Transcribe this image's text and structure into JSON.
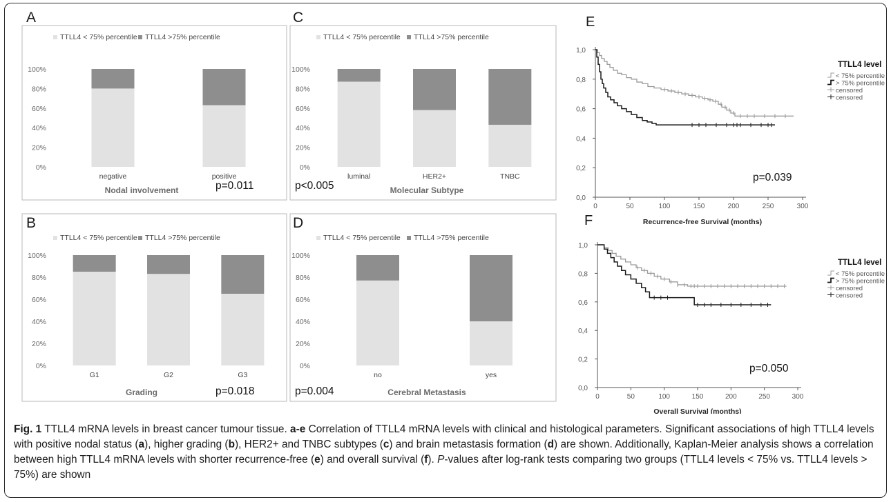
{
  "figure": {
    "caption_lead": "Fig. 1",
    "caption_html": " TTLL4 mRNA levels in breast cancer tumour tissue. <b>a-e</b> Correlation of TTLL4 mRNA levels with clinical and histological parameters. Significant associations of high TTLL4 levels with positive nodal status (<b>a</b>), higher grading (<b>b</b>), HER2+ and TNBC subtypes (<b>c</b>) and brain metastasis formation (<b>d</b>) are shown. Additionally, Kaplan-Meier analysis shows a correlation between high TTLL4 mRNA levels with shorter recurrence-free (<b>e</b>) and overall survival (<b>f</b>). <i>P</i>-values after log-rank tests comparing two groups (TTLL4 levels &lt; 75% vs. TTLL4 levels &gt; 75%) are shown"
  },
  "colors": {
    "low": "#e2e2e2",
    "high": "#8e8e8e",
    "km_low": "#9a9a9a",
    "km_high": "#1a1a1a",
    "axis_text": "#555555"
  },
  "chart_data": [
    {
      "panel": "A",
      "type": "bar",
      "stacked": true,
      "categories": [
        "negative",
        "positive"
      ],
      "series": [
        {
          "name": "TTLL4 < 75% percentile",
          "values": [
            80,
            63
          ]
        },
        {
          "name": "TTLL4 >75% percentile",
          "values": [
            20,
            37
          ]
        }
      ],
      "xlabel": "Nodal involvement",
      "ylim": [
        0,
        100
      ],
      "yticks": [
        "0%",
        "20%",
        "40%",
        "60%",
        "80%",
        "100%"
      ],
      "pvalue": "p=0.011",
      "legend": "top"
    },
    {
      "panel": "B",
      "type": "bar",
      "stacked": true,
      "categories": [
        "G1",
        "G2",
        "G3"
      ],
      "series": [
        {
          "name": "TTLL4 < 75% percentile",
          "values": [
            85,
            83,
            65
          ]
        },
        {
          "name": "TTLL4 >75% percentile",
          "values": [
            15,
            17,
            35
          ]
        }
      ],
      "xlabel": "Grading",
      "ylim": [
        0,
        100
      ],
      "yticks": [
        "0%",
        "20%",
        "40%",
        "60%",
        "80%",
        "100%"
      ],
      "pvalue": "p=0.018",
      "legend": "top"
    },
    {
      "panel": "C",
      "type": "bar",
      "stacked": true,
      "categories": [
        "luminal",
        "HER2+",
        "TNBC"
      ],
      "series": [
        {
          "name": "TTLL4 < 75% percentile",
          "values": [
            87,
            58,
            43
          ]
        },
        {
          "name": "TTLL4 >75% percentile",
          "values": [
            13,
            42,
            57
          ]
        }
      ],
      "xlabel": "Molecular Subtype",
      "ylim": [
        0,
        100
      ],
      "yticks": [
        "0%",
        "20%",
        "40%",
        "60%",
        "80%",
        "100%"
      ],
      "pvalue": "p<0.005",
      "legend": "top"
    },
    {
      "panel": "D",
      "type": "bar",
      "stacked": true,
      "categories": [
        "no",
        "yes"
      ],
      "series": [
        {
          "name": "TTLL4 < 75% percentile",
          "values": [
            77,
            40
          ]
        },
        {
          "name": "TTLL4 >75% percentile",
          "values": [
            23,
            60
          ]
        }
      ],
      "xlabel": "Cerebral Metastasis",
      "ylim": [
        0,
        100
      ],
      "yticks": [
        "0%",
        "20%",
        "40%",
        "60%",
        "80%",
        "100%"
      ],
      "pvalue": "p=0.004",
      "legend": "top"
    },
    {
      "panel": "E",
      "type": "line",
      "step": true,
      "xlabel": "Recurrence-free Survival (months)",
      "xlim": [
        0,
        300
      ],
      "ylim": [
        0,
        1
      ],
      "xticks": [
        0,
        50,
        100,
        150,
        200,
        250,
        300
      ],
      "yticks": [
        "0,0",
        "0,2",
        "0,4",
        "0,6",
        "0,8",
        "1,0"
      ],
      "legend_title": "TTLL4  level",
      "legend_items": [
        "< 75% percentile",
        "> 75% percentile",
        "censored",
        "censored"
      ],
      "pvalue": "p=0.039",
      "series": [
        {
          "name": "< 75% percentile",
          "x": [
            0,
            3,
            6,
            9,
            13,
            17,
            21,
            26,
            32,
            38,
            45,
            52,
            60,
            68,
            76,
            85,
            95,
            105,
            115,
            125,
            135,
            145,
            155,
            163,
            170,
            178,
            183,
            190,
            196,
            202,
            287
          ],
          "y": [
            1,
            0.98,
            0.96,
            0.94,
            0.92,
            0.9,
            0.88,
            0.86,
            0.84,
            0.83,
            0.81,
            0.8,
            0.78,
            0.77,
            0.75,
            0.74,
            0.73,
            0.72,
            0.71,
            0.7,
            0.69,
            0.68,
            0.67,
            0.66,
            0.65,
            0.63,
            0.61,
            0.59,
            0.57,
            0.55,
            0.55
          ],
          "censored_x": [
            100,
            110,
            120,
            130,
            140,
            150,
            158,
            166,
            174,
            182,
            188,
            194,
            200,
            210,
            220,
            230,
            245,
            260,
            275
          ]
        },
        {
          "name": "> 75% percentile",
          "x": [
            0,
            2,
            4,
            6,
            8,
            10,
            12,
            15,
            18,
            22,
            27,
            32,
            38,
            45,
            52,
            60,
            68,
            75,
            82,
            88,
            260
          ],
          "y": [
            1,
            0.95,
            0.9,
            0.85,
            0.8,
            0.77,
            0.74,
            0.71,
            0.68,
            0.66,
            0.64,
            0.62,
            0.6,
            0.58,
            0.56,
            0.54,
            0.52,
            0.51,
            0.5,
            0.49,
            0.49
          ],
          "censored_x": [
            140,
            150,
            160,
            175,
            190,
            200,
            205,
            210,
            225,
            240,
            250,
            255
          ]
        }
      ]
    },
    {
      "panel": "F",
      "type": "line",
      "step": true,
      "xlabel": "Overall Survival (months)",
      "xlim": [
        0,
        300
      ],
      "ylim": [
        0,
        1
      ],
      "xticks": [
        0,
        50,
        100,
        150,
        200,
        250,
        300
      ],
      "yticks": [
        "0,0",
        "0,2",
        "0,4",
        "0,6",
        "0,8",
        "1,0"
      ],
      "legend_title": "TTLL4 level",
      "legend_items": [
        "< 75% percentile",
        "> 75% percentile",
        "censored",
        "censored"
      ],
      "pvalue": "p=0.050",
      "series": [
        {
          "name": "< 75% percentile",
          "x": [
            0,
            10,
            16,
            22,
            28,
            35,
            42,
            50,
            58,
            66,
            75,
            85,
            95,
            108,
            120,
            135,
            283
          ],
          "y": [
            1,
            0.98,
            0.96,
            0.94,
            0.92,
            0.9,
            0.88,
            0.86,
            0.84,
            0.82,
            0.8,
            0.78,
            0.76,
            0.74,
            0.72,
            0.71,
            0.71
          ],
          "censored_x": [
            60,
            70,
            80,
            90,
            100,
            110,
            120,
            130,
            140,
            145,
            150,
            160,
            170,
            180,
            190,
            200,
            210,
            220,
            230,
            240,
            250,
            260,
            270,
            280
          ]
        },
        {
          "name": "> 75% percentile",
          "x": [
            0,
            10,
            15,
            20,
            25,
            30,
            36,
            42,
            50,
            58,
            66,
            72,
            78,
            140,
            145,
            260
          ],
          "y": [
            1,
            0.97,
            0.94,
            0.91,
            0.88,
            0.85,
            0.82,
            0.79,
            0.76,
            0.73,
            0.7,
            0.67,
            0.63,
            0.63,
            0.58,
            0.58
          ],
          "censored_x": [
            85,
            95,
            105,
            150,
            160,
            170,
            185,
            200,
            215,
            230,
            245,
            255
          ]
        }
      ]
    }
  ]
}
